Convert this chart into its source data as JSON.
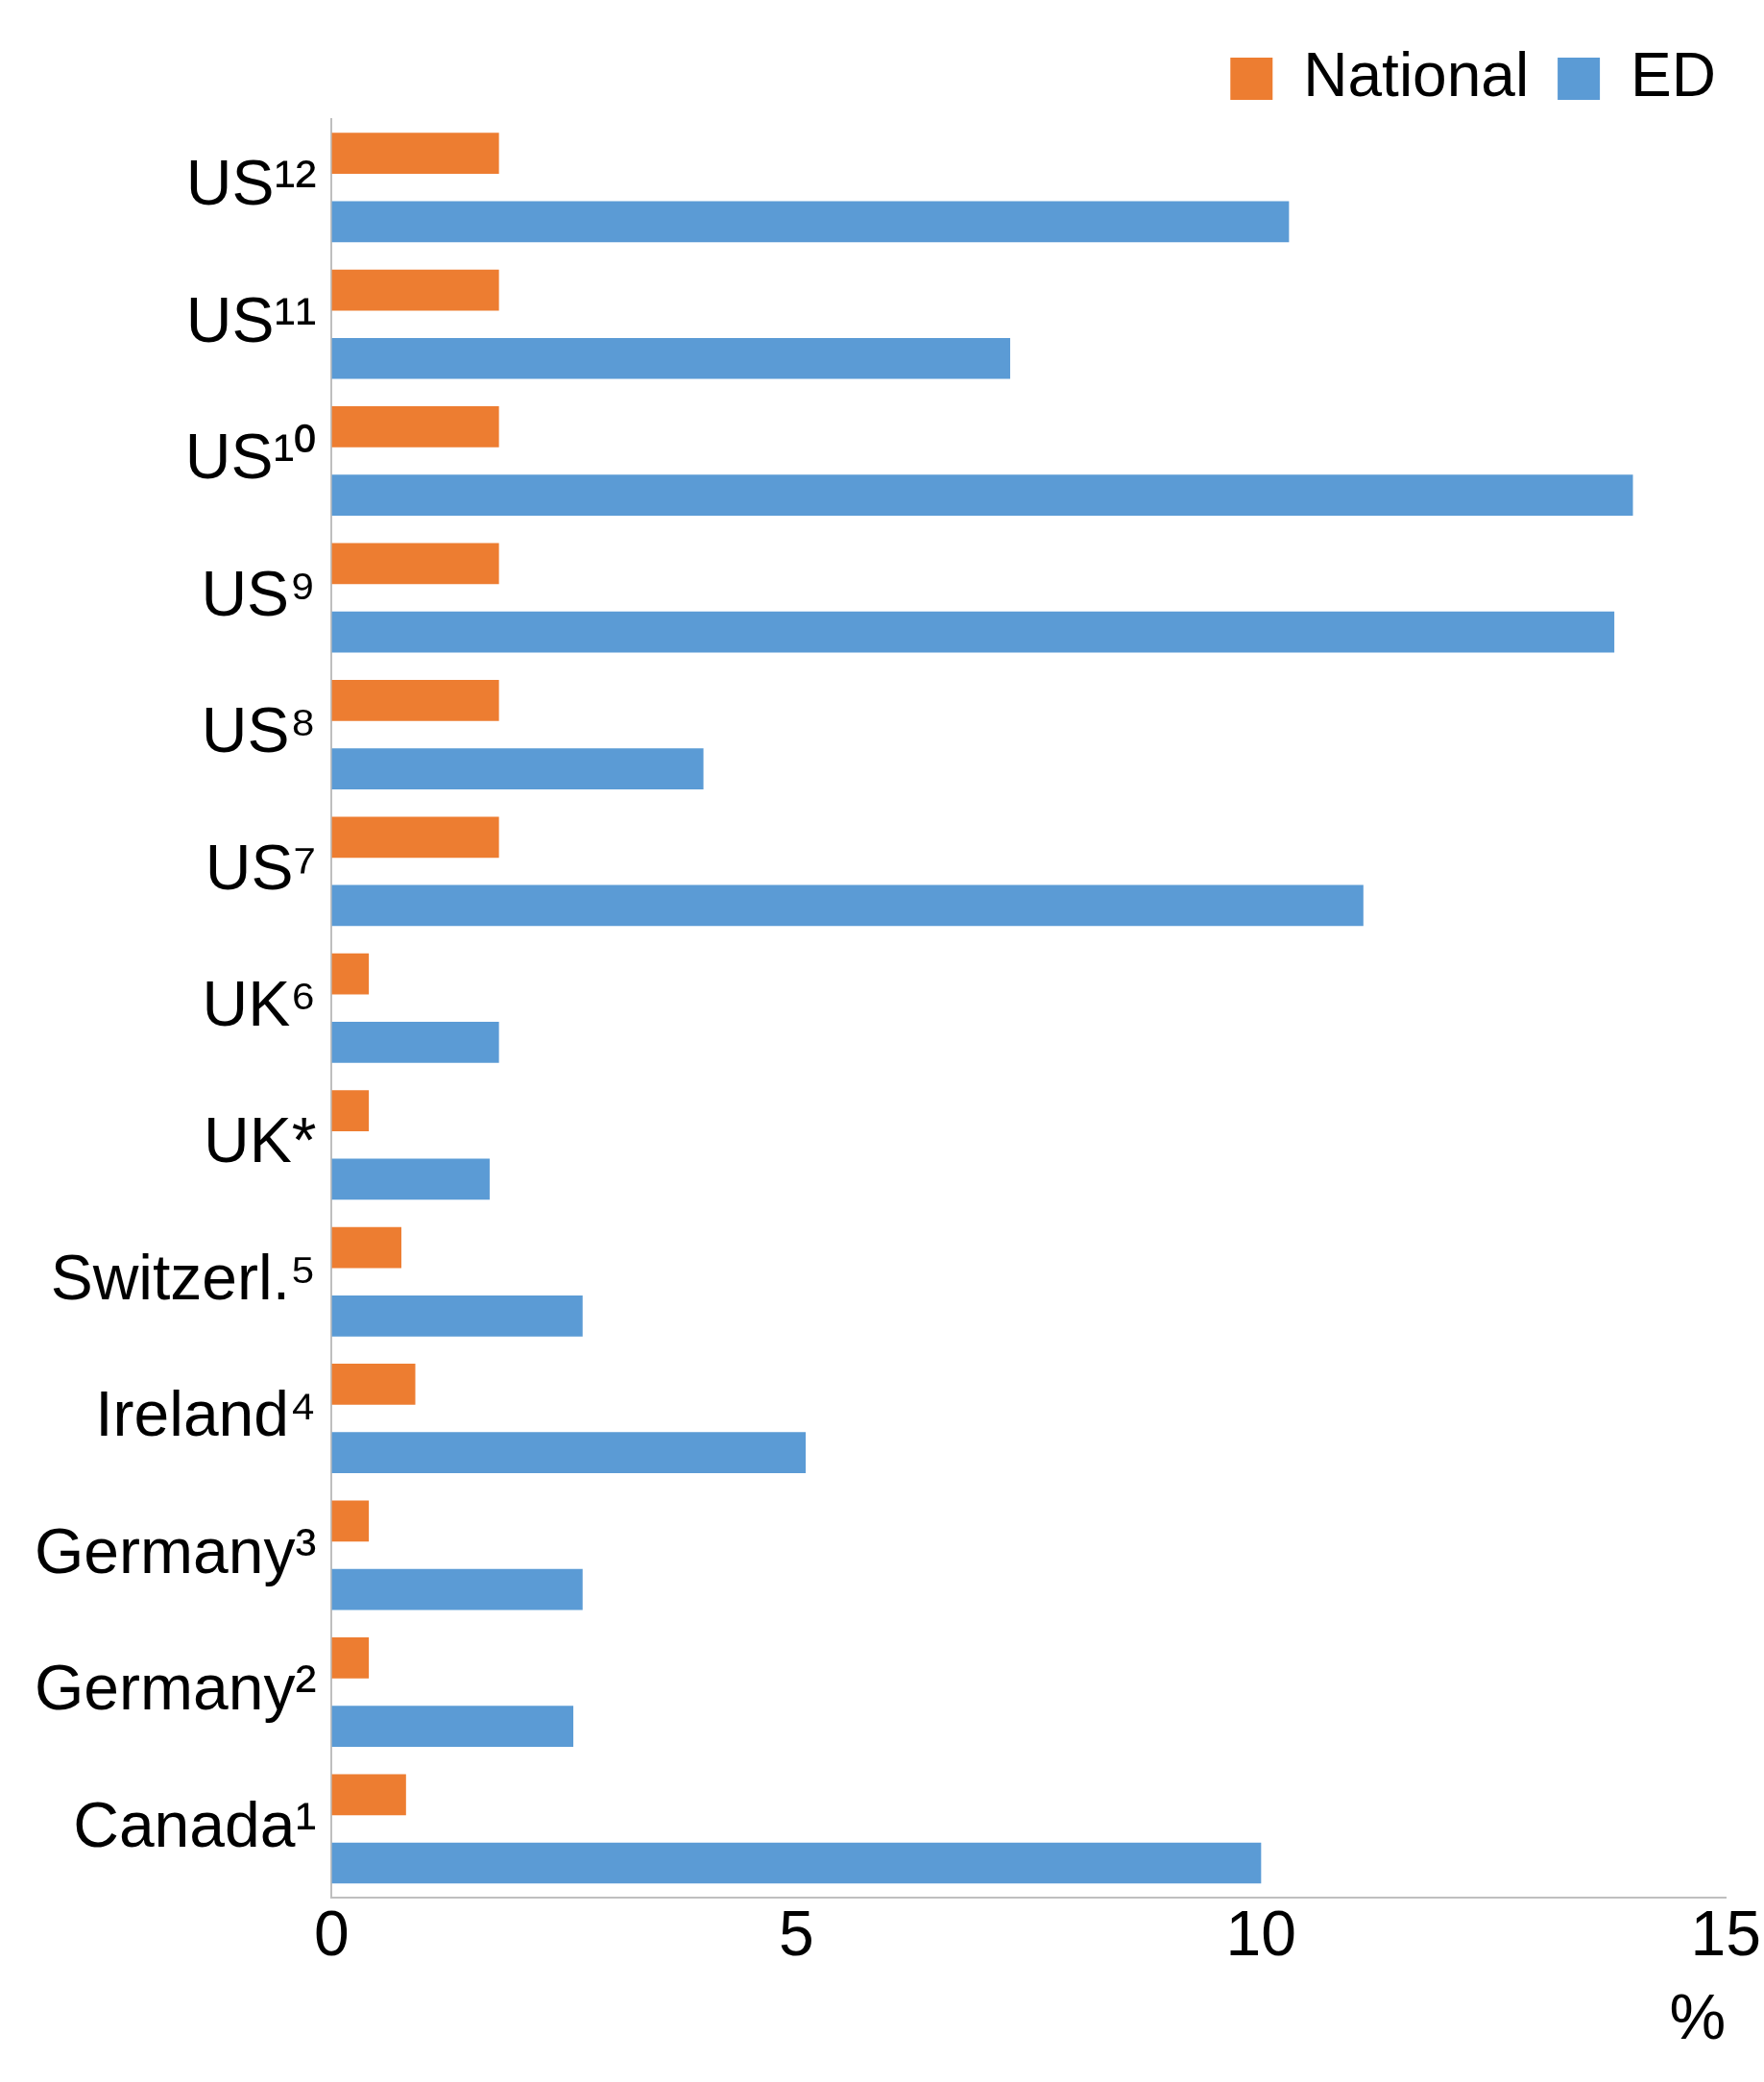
{
  "chart_data": {
    "type": "bar",
    "orientation": "horizontal",
    "categories": [
      "US¹²",
      "US¹¹",
      "US¹⁰",
      "US⁹",
      "US⁸",
      "US⁷",
      "UK⁶",
      "UK*",
      "Switzerl.⁵",
      "Ireland⁴",
      "Germany³",
      "Germany²",
      "Canada¹"
    ],
    "series": [
      {
        "name": "National",
        "color": "#ed7d31",
        "values": [
          1.8,
          1.8,
          1.8,
          1.8,
          1.8,
          1.8,
          0.4,
          0.4,
          0.75,
          0.9,
          0.4,
          0.4,
          0.8
        ]
      },
      {
        "name": "ED",
        "color": "#5b9bd5",
        "values": [
          10.3,
          7.3,
          14.0,
          13.8,
          4.0,
          11.1,
          1.8,
          1.7,
          2.7,
          5.1,
          2.7,
          2.6,
          10.0
        ]
      }
    ],
    "xlabel": "%",
    "xlim": [
      0,
      15
    ],
    "xticks": [
      0,
      5,
      10,
      15
    ],
    "grid": false,
    "legend": "top right"
  }
}
